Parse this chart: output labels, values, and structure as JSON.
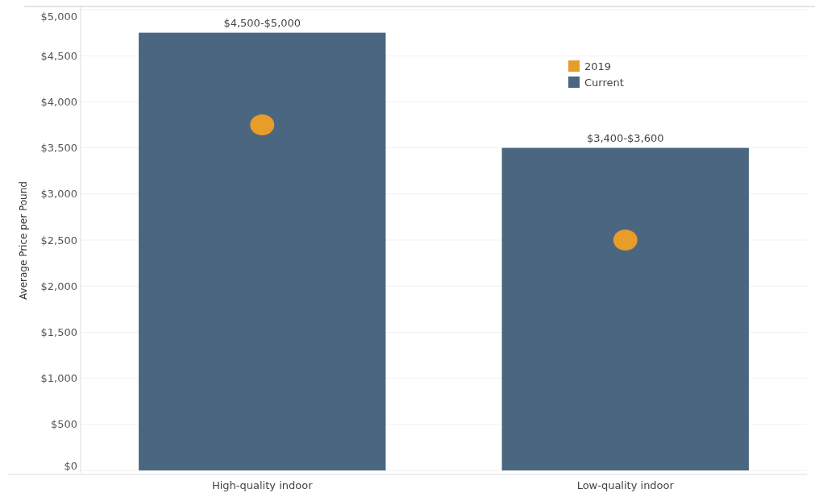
{
  "chart_data": {
    "type": "bar",
    "ylabel": "Average Price per Pound",
    "categories": [
      "High-quality indoor",
      "Low-quality indoor"
    ],
    "series": [
      {
        "name": "Current",
        "color": "#4a6680",
        "values": [
          4750,
          3500
        ],
        "value_labels": [
          "$4,500-$5,000",
          "$3,400-$3,600"
        ]
      },
      {
        "name": "2019",
        "type": "scatter",
        "color": "#e89c2a",
        "x": [
          "High-quality indoor",
          "Low-quality indoor"
        ],
        "values": [
          3750,
          2500
        ]
      }
    ],
    "ylim": [
      0,
      5000
    ],
    "yticks": [
      {
        "value": 0,
        "label": "$0"
      },
      {
        "value": 500,
        "label": "$500"
      },
      {
        "value": 1000,
        "label": "$1,000"
      },
      {
        "value": 1500,
        "label": "$1,500"
      },
      {
        "value": 2000,
        "label": "$2,000"
      },
      {
        "value": 2500,
        "label": "$2,500"
      },
      {
        "value": 3000,
        "label": "$3,000"
      },
      {
        "value": 3500,
        "label": "$3,500"
      },
      {
        "value": 4000,
        "label": "$4,000"
      },
      {
        "value": 4500,
        "label": "$4,500"
      },
      {
        "value": 5000,
        "label": "$5,000"
      }
    ],
    "grid": "y",
    "legend": "top right",
    "marker": "circle"
  }
}
